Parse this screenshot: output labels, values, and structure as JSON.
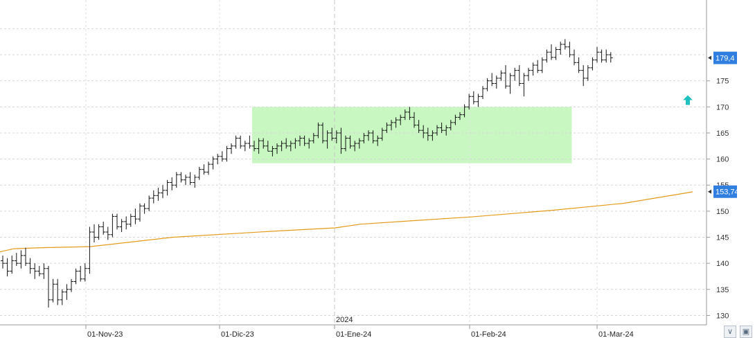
{
  "chart_data": {
    "type": "ohlc",
    "y_axis": {
      "ticks": [
        130,
        135,
        140,
        145,
        150,
        155,
        160,
        165,
        170,
        175
      ],
      "ylim": [
        128.2,
        190.5
      ],
      "position": "right"
    },
    "x_axis": {
      "date_labels": [
        "01-Nov-23",
        "01-Dic-23",
        "01-Ene-24",
        "01-Feb-24",
        "01-Mar-24"
      ],
      "year_label": "2024"
    },
    "last_price": {
      "label": "179,4",
      "value": 179.4,
      "color": "#2f7ee0"
    },
    "moving_average": {
      "label": "153,74",
      "value": 153.74,
      "color": "#e49a1a",
      "points": [
        [
          0,
          142.2
        ],
        [
          20,
          142.8
        ],
        [
          60,
          143.0
        ],
        [
          130,
          143.2
        ],
        [
          250,
          145.0
        ],
        [
          400,
          146.2
        ],
        [
          484,
          146.8
        ],
        [
          520,
          147.5
        ],
        [
          600,
          148.2
        ],
        [
          680,
          148.9
        ],
        [
          800,
          150.2
        ],
        [
          900,
          151.5
        ],
        [
          1000,
          153.7
        ]
      ]
    },
    "range_box": {
      "from_index": 55,
      "to_index": 124,
      "top": 170.0,
      "bottom": 159.2,
      "color": "#c8f7c2"
    },
    "signal_arrow": {
      "index": 150,
      "value": 171.3,
      "direction": "up",
      "color": "#20c0c0"
    },
    "bars": [
      [
        140.5,
        141.5,
        139.0,
        140.0
      ],
      [
        140.0,
        141.0,
        137.5,
        138.5
      ],
      [
        138.5,
        141.5,
        138.0,
        140.5
      ],
      [
        140.5,
        142.0,
        139.5,
        140.0
      ],
      [
        140.0,
        142.5,
        139.0,
        141.5
      ],
      [
        141.5,
        143.0,
        139.5,
        140.0
      ],
      [
        140.0,
        141.0,
        138.0,
        139.0
      ],
      [
        139.0,
        140.0,
        137.0,
        138.5
      ],
      [
        138.5,
        139.5,
        137.5,
        138.0
      ],
      [
        138.0,
        140.0,
        137.0,
        139.0
      ],
      [
        139.0,
        139.5,
        131.5,
        133.0
      ],
      [
        133.0,
        137.0,
        132.5,
        136.0
      ],
      [
        136.0,
        137.0,
        132.0,
        133.0
      ],
      [
        133.0,
        135.0,
        132.0,
        134.5
      ],
      [
        134.5,
        136.0,
        133.0,
        135.0
      ],
      [
        135.0,
        137.0,
        134.5,
        136.5
      ],
      [
        136.5,
        139.0,
        136.0,
        138.5
      ],
      [
        138.5,
        139.5,
        136.5,
        137.0
      ],
      [
        137.0,
        140.0,
        136.5,
        139.0
      ],
      [
        139.0,
        147.0,
        138.0,
        146.0
      ],
      [
        146.0,
        147.5,
        144.0,
        145.0
      ],
      [
        145.0,
        147.5,
        144.5,
        147.0
      ],
      [
        147.0,
        148.0,
        145.5,
        146.0
      ],
      [
        146.0,
        147.0,
        144.5,
        145.5
      ],
      [
        145.5,
        149.5,
        145.0,
        149.0
      ],
      [
        149.0,
        149.5,
        146.5,
        147.0
      ],
      [
        147.0,
        148.5,
        146.0,
        148.0
      ],
      [
        148.0,
        149.0,
        146.5,
        147.5
      ],
      [
        147.5,
        149.5,
        147.0,
        149.0
      ],
      [
        149.0,
        150.5,
        147.5,
        148.5
      ],
      [
        148.5,
        151.5,
        148.0,
        151.0
      ],
      [
        151.0,
        151.5,
        149.5,
        150.5
      ],
      [
        150.5,
        153.0,
        150.0,
        152.5
      ],
      [
        152.5,
        154.0,
        151.5,
        153.0
      ],
      [
        153.0,
        154.5,
        152.0,
        153.5
      ],
      [
        153.5,
        155.0,
        152.5,
        154.0
      ],
      [
        154.0,
        156.0,
        153.0,
        155.5
      ],
      [
        155.5,
        156.5,
        154.0,
        155.0
      ],
      [
        155.0,
        157.5,
        154.5,
        157.0
      ],
      [
        157.0,
        157.5,
        155.5,
        156.0
      ],
      [
        156.0,
        157.0,
        155.0,
        156.5
      ],
      [
        156.5,
        157.5,
        155.0,
        155.5
      ],
      [
        155.5,
        157.0,
        154.5,
        156.5
      ],
      [
        156.5,
        158.5,
        156.0,
        158.0
      ],
      [
        158.0,
        159.0,
        157.0,
        157.5
      ],
      [
        157.5,
        159.5,
        157.0,
        159.0
      ],
      [
        159.0,
        160.5,
        158.0,
        160.0
      ],
      [
        160.0,
        161.0,
        159.0,
        160.5
      ],
      [
        160.5,
        161.5,
        159.5,
        160.0
      ],
      [
        160.0,
        162.5,
        159.5,
        162.0
      ],
      [
        162.0,
        163.0,
        161.0,
        162.5
      ],
      [
        162.5,
        164.5,
        162.0,
        164.0
      ],
      [
        164.0,
        164.5,
        162.0,
        162.5
      ],
      [
        162.5,
        163.5,
        161.5,
        163.0
      ],
      [
        163.0,
        164.5,
        162.0,
        162.5
      ],
      [
        162.5,
        163.5,
        161.5,
        162.0
      ],
      [
        162.0,
        164.0,
        161.0,
        163.5
      ],
      [
        163.5,
        164.0,
        162.0,
        162.5
      ],
      [
        162.5,
        163.5,
        161.5,
        161.5
      ],
      [
        161.5,
        162.5,
        160.5,
        162.0
      ],
      [
        162.0,
        163.0,
        161.0,
        162.5
      ],
      [
        162.5,
        163.5,
        161.5,
        163.0
      ],
      [
        163.0,
        164.0,
        162.0,
        162.5
      ],
      [
        162.5,
        163.5,
        161.5,
        163.0
      ],
      [
        163.0,
        164.0,
        162.0,
        163.5
      ],
      [
        163.5,
        164.5,
        162.5,
        164.0
      ],
      [
        164.0,
        164.5,
        162.5,
        163.0
      ],
      [
        163.0,
        164.0,
        162.0,
        163.5
      ],
      [
        163.5,
        165.0,
        163.0,
        164.5
      ],
      [
        164.5,
        167.0,
        164.0,
        166.5
      ],
      [
        166.5,
        167.0,
        163.0,
        163.5
      ],
      [
        163.5,
        165.5,
        162.0,
        165.0
      ],
      [
        165.0,
        166.0,
        163.5,
        164.0
      ],
      [
        164.0,
        165.5,
        163.0,
        165.0
      ],
      [
        165.0,
        166.0,
        161.0,
        162.0
      ],
      [
        162.0,
        164.5,
        161.5,
        164.0
      ],
      [
        164.0,
        164.5,
        162.0,
        162.5
      ],
      [
        162.5,
        163.5,
        161.5,
        163.0
      ],
      [
        163.0,
        164.0,
        162.0,
        163.5
      ],
      [
        163.5,
        165.0,
        163.0,
        164.5
      ],
      [
        164.5,
        165.5,
        163.5,
        165.0
      ],
      [
        165.0,
        165.5,
        163.0,
        163.5
      ],
      [
        163.5,
        164.5,
        162.5,
        164.0
      ],
      [
        164.0,
        166.0,
        163.5,
        165.5
      ],
      [
        165.5,
        167.0,
        165.0,
        166.5
      ],
      [
        166.5,
        167.5,
        165.5,
        167.0
      ],
      [
        167.0,
        168.0,
        166.0,
        167.5
      ],
      [
        167.5,
        168.5,
        166.5,
        168.0
      ],
      [
        168.0,
        169.5,
        167.5,
        169.0
      ],
      [
        169.0,
        170.0,
        167.5,
        168.0
      ],
      [
        168.0,
        169.0,
        166.0,
        166.5
      ],
      [
        166.5,
        167.5,
        165.0,
        165.5
      ],
      [
        165.5,
        166.5,
        164.0,
        165.0
      ],
      [
        165.0,
        166.0,
        163.5,
        164.5
      ],
      [
        164.5,
        165.5,
        163.5,
        165.0
      ],
      [
        165.0,
        166.5,
        164.5,
        166.0
      ],
      [
        166.0,
        167.0,
        165.0,
        165.5
      ],
      [
        165.5,
        166.5,
        164.5,
        166.0
      ],
      [
        166.0,
        167.5,
        165.5,
        167.0
      ],
      [
        167.0,
        168.5,
        166.5,
        168.0
      ],
      [
        168.0,
        169.0,
        167.5,
        168.5
      ],
      [
        168.5,
        170.5,
        168.0,
        170.0
      ],
      [
        170.0,
        172.5,
        169.5,
        172.0
      ],
      [
        172.0,
        173.0,
        170.5,
        171.0
      ],
      [
        171.0,
        172.5,
        170.0,
        172.0
      ],
      [
        172.0,
        174.0,
        171.5,
        173.5
      ],
      [
        173.5,
        175.5,
        173.0,
        175.0
      ],
      [
        175.0,
        176.5,
        174.0,
        174.5
      ],
      [
        174.5,
        176.0,
        173.5,
        175.5
      ],
      [
        175.5,
        177.0,
        175.0,
        176.5
      ],
      [
        176.5,
        178.0,
        173.5,
        174.0
      ],
      [
        174.0,
        176.5,
        172.5,
        176.0
      ],
      [
        176.0,
        177.5,
        175.0,
        177.0
      ],
      [
        177.0,
        178.0,
        174.0,
        174.5
      ],
      [
        174.5,
        176.5,
        172.0,
        176.0
      ],
      [
        176.0,
        177.5,
        175.0,
        177.0
      ],
      [
        177.0,
        178.5,
        176.0,
        178.0
      ],
      [
        178.0,
        179.0,
        176.5,
        177.0
      ],
      [
        177.0,
        179.5,
        176.5,
        179.0
      ],
      [
        179.0,
        181.0,
        178.5,
        180.5
      ],
      [
        180.5,
        182.0,
        179.0,
        179.5
      ],
      [
        179.5,
        181.5,
        179.0,
        181.0
      ],
      [
        181.0,
        182.5,
        180.0,
        182.0
      ],
      [
        182.0,
        183.0,
        181.0,
        181.5
      ],
      [
        181.5,
        182.5,
        179.5,
        180.0
      ],
      [
        180.0,
        181.0,
        178.0,
        178.5
      ],
      [
        178.5,
        179.5,
        176.5,
        177.0
      ],
      [
        177.0,
        178.0,
        174.0,
        175.5
      ],
      [
        175.5,
        178.0,
        175.0,
        177.5
      ],
      [
        177.5,
        179.5,
        177.0,
        179.0
      ],
      [
        179.0,
        181.5,
        178.5,
        180.5
      ],
      [
        180.5,
        181.0,
        178.5,
        179.0
      ],
      [
        179.0,
        181.0,
        178.5,
        180.0
      ],
      [
        180.0,
        180.5,
        178.5,
        179.4
      ]
    ]
  }
}
